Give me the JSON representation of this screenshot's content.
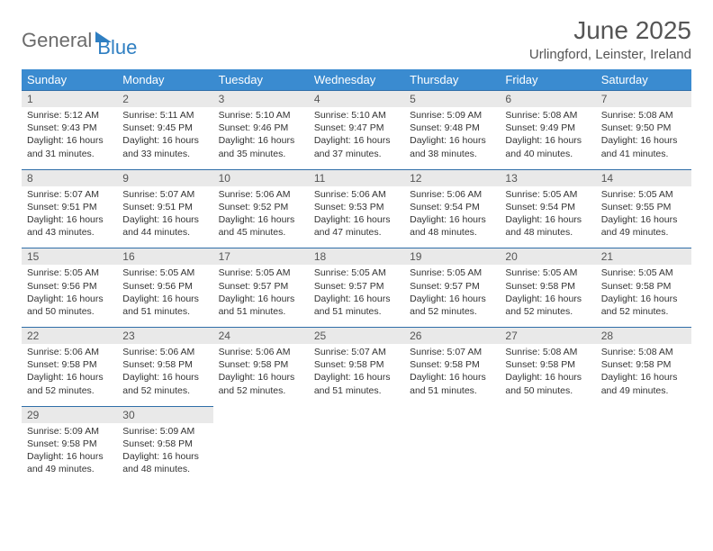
{
  "logo": {
    "general": "General",
    "blue": "Blue"
  },
  "title": "June 2025",
  "location": "Urlingford, Leinster, Ireland",
  "colors": {
    "header_bg": "#3a8bd0",
    "header_text": "#ffffff",
    "daynum_bg": "#e9e9e9",
    "border": "#2f6ea8",
    "body_text": "#333333",
    "title_text": "#555555",
    "logo_gray": "#6b6b6b",
    "logo_blue": "#2f7fc2",
    "background": "#ffffff"
  },
  "weekdays": [
    "Sunday",
    "Monday",
    "Tuesday",
    "Wednesday",
    "Thursday",
    "Friday",
    "Saturday"
  ],
  "weeks": [
    [
      {
        "n": "1",
        "sr": "5:12 AM",
        "ss": "9:43 PM",
        "dl": "16 hours and 31 minutes."
      },
      {
        "n": "2",
        "sr": "5:11 AM",
        "ss": "9:45 PM",
        "dl": "16 hours and 33 minutes."
      },
      {
        "n": "3",
        "sr": "5:10 AM",
        "ss": "9:46 PM",
        "dl": "16 hours and 35 minutes."
      },
      {
        "n": "4",
        "sr": "5:10 AM",
        "ss": "9:47 PM",
        "dl": "16 hours and 37 minutes."
      },
      {
        "n": "5",
        "sr": "5:09 AM",
        "ss": "9:48 PM",
        "dl": "16 hours and 38 minutes."
      },
      {
        "n": "6",
        "sr": "5:08 AM",
        "ss": "9:49 PM",
        "dl": "16 hours and 40 minutes."
      },
      {
        "n": "7",
        "sr": "5:08 AM",
        "ss": "9:50 PM",
        "dl": "16 hours and 41 minutes."
      }
    ],
    [
      {
        "n": "8",
        "sr": "5:07 AM",
        "ss": "9:51 PM",
        "dl": "16 hours and 43 minutes."
      },
      {
        "n": "9",
        "sr": "5:07 AM",
        "ss": "9:51 PM",
        "dl": "16 hours and 44 minutes."
      },
      {
        "n": "10",
        "sr": "5:06 AM",
        "ss": "9:52 PM",
        "dl": "16 hours and 45 minutes."
      },
      {
        "n": "11",
        "sr": "5:06 AM",
        "ss": "9:53 PM",
        "dl": "16 hours and 47 minutes."
      },
      {
        "n": "12",
        "sr": "5:06 AM",
        "ss": "9:54 PM",
        "dl": "16 hours and 48 minutes."
      },
      {
        "n": "13",
        "sr": "5:05 AM",
        "ss": "9:54 PM",
        "dl": "16 hours and 48 minutes."
      },
      {
        "n": "14",
        "sr": "5:05 AM",
        "ss": "9:55 PM",
        "dl": "16 hours and 49 minutes."
      }
    ],
    [
      {
        "n": "15",
        "sr": "5:05 AM",
        "ss": "9:56 PM",
        "dl": "16 hours and 50 minutes."
      },
      {
        "n": "16",
        "sr": "5:05 AM",
        "ss": "9:56 PM",
        "dl": "16 hours and 51 minutes."
      },
      {
        "n": "17",
        "sr": "5:05 AM",
        "ss": "9:57 PM",
        "dl": "16 hours and 51 minutes."
      },
      {
        "n": "18",
        "sr": "5:05 AM",
        "ss": "9:57 PM",
        "dl": "16 hours and 51 minutes."
      },
      {
        "n": "19",
        "sr": "5:05 AM",
        "ss": "9:57 PM",
        "dl": "16 hours and 52 minutes."
      },
      {
        "n": "20",
        "sr": "5:05 AM",
        "ss": "9:58 PM",
        "dl": "16 hours and 52 minutes."
      },
      {
        "n": "21",
        "sr": "5:05 AM",
        "ss": "9:58 PM",
        "dl": "16 hours and 52 minutes."
      }
    ],
    [
      {
        "n": "22",
        "sr": "5:06 AM",
        "ss": "9:58 PM",
        "dl": "16 hours and 52 minutes."
      },
      {
        "n": "23",
        "sr": "5:06 AM",
        "ss": "9:58 PM",
        "dl": "16 hours and 52 minutes."
      },
      {
        "n": "24",
        "sr": "5:06 AM",
        "ss": "9:58 PM",
        "dl": "16 hours and 52 minutes."
      },
      {
        "n": "25",
        "sr": "5:07 AM",
        "ss": "9:58 PM",
        "dl": "16 hours and 51 minutes."
      },
      {
        "n": "26",
        "sr": "5:07 AM",
        "ss": "9:58 PM",
        "dl": "16 hours and 51 minutes."
      },
      {
        "n": "27",
        "sr": "5:08 AM",
        "ss": "9:58 PM",
        "dl": "16 hours and 50 minutes."
      },
      {
        "n": "28",
        "sr": "5:08 AM",
        "ss": "9:58 PM",
        "dl": "16 hours and 49 minutes."
      }
    ],
    [
      {
        "n": "29",
        "sr": "5:09 AM",
        "ss": "9:58 PM",
        "dl": "16 hours and 49 minutes."
      },
      {
        "n": "30",
        "sr": "5:09 AM",
        "ss": "9:58 PM",
        "dl": "16 hours and 48 minutes."
      },
      null,
      null,
      null,
      null,
      null
    ]
  ],
  "labels": {
    "sunrise": "Sunrise:",
    "sunset": "Sunset:",
    "daylight": "Daylight:"
  }
}
